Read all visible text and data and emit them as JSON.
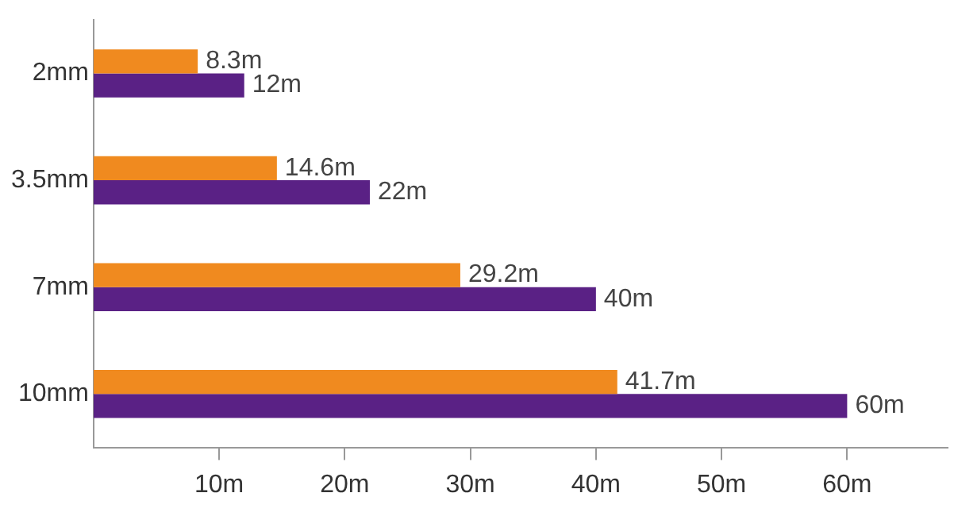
{
  "chart_data": {
    "type": "bar",
    "orientation": "horizontal",
    "categories": [
      "2mm",
      "3.5mm",
      "7mm",
      "10mm"
    ],
    "series": [
      {
        "color": "#f08a1f",
        "values": [
          8.3,
          14.6,
          29.2,
          41.7
        ],
        "value_labels": [
          "8.3m",
          "14.6m",
          "29.2m",
          "41.7m"
        ]
      },
      {
        "color": "#5a2185",
        "values": [
          12,
          22,
          40,
          60
        ],
        "value_labels": [
          "12m",
          "22m",
          "40m",
          "60m"
        ]
      }
    ],
    "xlim": [
      0,
      68
    ],
    "xticks": [
      {
        "value": 10,
        "label": "10m"
      },
      {
        "value": 20,
        "label": "20m"
      },
      {
        "value": 30,
        "label": "30m"
      },
      {
        "value": 40,
        "label": "40m"
      },
      {
        "value": 50,
        "label": "50m"
      },
      {
        "value": 60,
        "label": "60m"
      }
    ],
    "grid": false,
    "legend": false
  }
}
